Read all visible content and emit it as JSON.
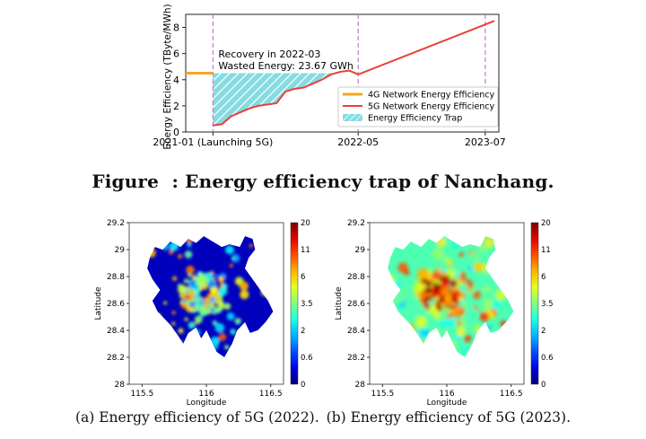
{
  "figure_caption": {
    "label": "Figure",
    "text": ": Energy efficiency trap of Nanchang."
  },
  "subcaptions": [
    "(a) Energy efficiency of 5G (2022).",
    "(b) Energy efficiency of 5G (2023)."
  ],
  "chart_data": [
    {
      "type": "line",
      "ylabel": "Energy Efficiency (TByte/MWh)",
      "ylim": [
        0,
        9
      ],
      "yticks": [
        0,
        2,
        4,
        6,
        8
      ],
      "x_tick_labels": [
        "2021-01 (Launching 5G)",
        "2022-05",
        "2023-07"
      ],
      "x_ticks_month_index": [
        0,
        16,
        30
      ],
      "xlim_month_index": [
        -3,
        31.5
      ],
      "grid": false,
      "legend_position": "center-right",
      "series": [
        {
          "name": "4G Network Energy Efficiency",
          "color": "#f5a623",
          "x": [
            -3,
            0
          ],
          "y": [
            4.5,
            4.5
          ]
        },
        {
          "name": "5G Network Energy Efficiency",
          "color": "#e8403a",
          "x": [
            0,
            1,
            2,
            3,
            4,
            5,
            6,
            7,
            8,
            9,
            10,
            11,
            12,
            13,
            14,
            15,
            16,
            31
          ],
          "y": [
            0.5,
            0.6,
            1.2,
            1.5,
            1.8,
            2.0,
            2.1,
            2.2,
            3.1,
            3.3,
            3.4,
            3.7,
            4.0,
            4.4,
            4.6,
            4.7,
            4.4,
            8.5
          ]
        },
        {
          "name": "Energy Efficiency Trap",
          "color": "#7fd8dd",
          "type": "area",
          "between": [
            4.5,
            "5G Network Energy Efficiency"
          ],
          "x_range": [
            0,
            14.5
          ]
        }
      ],
      "vlines_month_index": [
        0,
        16,
        30
      ],
      "annotation": [
        "Recovery in 2022-03",
        "Wasted Energy: 23.67 GWh"
      ]
    },
    {
      "type": "heatmap",
      "xlabel": "Longitude",
      "ylabel": "Latitude",
      "x_ticks": [
        "115.5",
        "116",
        "116.5"
      ],
      "y_ticks": [
        "28",
        "28.2",
        "28.4",
        "28.6",
        "28.8",
        "29",
        "29.2"
      ],
      "xlim": [
        115.4,
        116.6
      ],
      "ylim": [
        28.0,
        29.2
      ],
      "colorbar_ticks": [
        "20",
        "11",
        "6",
        "3.5",
        "2",
        "0.6",
        "0"
      ],
      "palette": "jet"
    },
    {
      "type": "heatmap",
      "xlabel": "Longitude",
      "ylabel": "Latitude",
      "x_ticks": [
        "115.5",
        "116",
        "116.5"
      ],
      "y_ticks": [
        "28",
        "28.2",
        "28.4",
        "28.6",
        "28.8",
        "29",
        "29.2"
      ],
      "xlim": [
        115.4,
        116.6
      ],
      "ylim": [
        28.0,
        29.2
      ],
      "colorbar_ticks": [
        "20",
        "11",
        "6",
        "3.5",
        "2",
        "0.6",
        "0"
      ],
      "palette": "jet"
    }
  ]
}
